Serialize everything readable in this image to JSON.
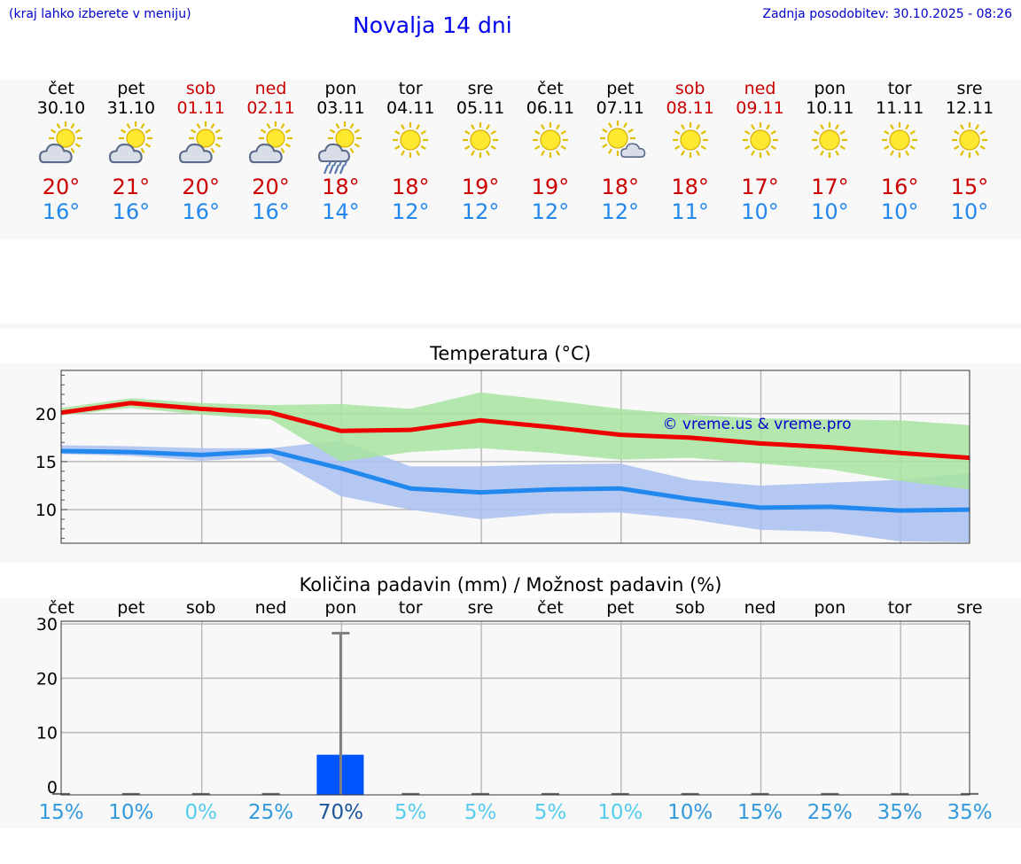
{
  "header": {
    "note": "(kraj lahko izberete v meniju)",
    "title": "Novalja 14 dni",
    "updated": "Zadnja posodobitev: 30.10.2025 - 08:26"
  },
  "days": [
    {
      "dow": "čet",
      "date": "30.10",
      "weekend": false,
      "icon": "partly-cloudy-icon",
      "tmax": "20°",
      "tmin": "16°"
    },
    {
      "dow": "pet",
      "date": "31.10",
      "weekend": false,
      "icon": "partly-cloudy-icon",
      "tmax": "21°",
      "tmin": "16°"
    },
    {
      "dow": "sob",
      "date": "01.11",
      "weekend": true,
      "icon": "partly-cloudy-icon",
      "tmax": "20°",
      "tmin": "16°"
    },
    {
      "dow": "ned",
      "date": "02.11",
      "weekend": true,
      "icon": "partly-cloudy-icon",
      "tmax": "20°",
      "tmin": "16°"
    },
    {
      "dow": "pon",
      "date": "03.11",
      "weekend": false,
      "icon": "sun-rain-icon",
      "tmax": "18°",
      "tmin": "14°"
    },
    {
      "dow": "tor",
      "date": "04.11",
      "weekend": false,
      "icon": "sun-icon",
      "tmax": "18°",
      "tmin": "12°"
    },
    {
      "dow": "sre",
      "date": "05.11",
      "weekend": false,
      "icon": "sun-icon",
      "tmax": "19°",
      "tmin": "12°"
    },
    {
      "dow": "čet",
      "date": "06.11",
      "weekend": false,
      "icon": "sun-icon",
      "tmax": "19°",
      "tmin": "12°"
    },
    {
      "dow": "pet",
      "date": "07.11",
      "weekend": false,
      "icon": "sun-small-cloud-icon",
      "tmax": "18°",
      "tmin": "12°"
    },
    {
      "dow": "sob",
      "date": "08.11",
      "weekend": true,
      "icon": "sun-icon",
      "tmax": "18°",
      "tmin": "11°"
    },
    {
      "dow": "ned",
      "date": "09.11",
      "weekend": true,
      "icon": "sun-icon",
      "tmax": "17°",
      "tmin": "10°"
    },
    {
      "dow": "pon",
      "date": "10.11",
      "weekend": false,
      "icon": "sun-icon",
      "tmax": "17°",
      "tmin": "10°"
    },
    {
      "dow": "tor",
      "date": "11.11",
      "weekend": false,
      "icon": "sun-icon",
      "tmax": "16°",
      "tmin": "10°"
    },
    {
      "dow": "sre",
      "date": "12.11",
      "weekend": false,
      "icon": "sun-icon",
      "tmax": "15°",
      "tmin": "10°"
    }
  ],
  "colors": {
    "max_line": "#ee0000",
    "min_line": "#2288ee",
    "max_band": "#a8e4a0",
    "min_band": "#a8c0f0",
    "bar": "#0055ff",
    "weekend": "#cc0000"
  },
  "chart_data": [
    {
      "type": "line",
      "title": "Temperatura (°C)",
      "xlabel": "",
      "ylabel": "",
      "x": [
        0,
        1,
        2,
        3,
        4,
        5,
        6,
        7,
        8,
        9,
        10,
        11,
        12,
        13
      ],
      "ylim": [
        6.5,
        24.5
      ],
      "yticks": [
        10,
        15,
        20
      ],
      "grid": true,
      "watermark": "© vreme.us & vreme.pro",
      "series": [
        {
          "name": "max",
          "values": [
            20.1,
            21.1,
            20.5,
            20.1,
            18.2,
            18.3,
            19.3,
            18.6,
            17.8,
            17.5,
            16.9,
            16.5,
            15.9,
            15.4
          ],
          "band_low": [
            19.8,
            20.6,
            19.9,
            19.4,
            15.0,
            16.0,
            16.4,
            15.9,
            15.2,
            15.4,
            14.8,
            14.2,
            13.0,
            12.1
          ],
          "band_high": [
            20.6,
            21.6,
            21.1,
            20.9,
            21.0,
            20.5,
            22.2,
            21.4,
            20.5,
            19.9,
            19.5,
            19.4,
            19.3,
            18.8
          ]
        },
        {
          "name": "min",
          "values": [
            16.1,
            16.0,
            15.7,
            16.1,
            14.3,
            12.2,
            11.8,
            12.1,
            12.2,
            11.1,
            10.2,
            10.3,
            9.9,
            10.0
          ],
          "band_low": [
            15.8,
            15.6,
            15.1,
            15.5,
            11.4,
            10.0,
            9.0,
            9.6,
            9.7,
            9.0,
            7.9,
            7.7,
            6.7,
            6.6
          ],
          "band_high": [
            16.7,
            16.6,
            16.4,
            16.4,
            17.2,
            14.5,
            14.5,
            14.7,
            14.8,
            13.1,
            12.5,
            12.8,
            13.1,
            13.8
          ]
        }
      ]
    },
    {
      "type": "bar",
      "title": "Količina padavin (mm) / Možnost padavin (%)",
      "categories": [
        "čet",
        "pet",
        "sob",
        "ned",
        "pon",
        "tor",
        "sre",
        "čet",
        "pet",
        "sob",
        "ned",
        "pon",
        "tor",
        "sre"
      ],
      "values": [
        0,
        0,
        0,
        0,
        5.9,
        0,
        0,
        0,
        0,
        0,
        0,
        0,
        0,
        0
      ],
      "error_high": [
        0,
        0,
        0,
        0,
        28.3,
        0,
        0,
        0,
        0,
        0,
        0,
        0,
        0,
        0
      ],
      "ylim": [
        -1.5,
        30.5
      ],
      "yticks": [
        0,
        10,
        20,
        30
      ],
      "chance": [
        "15%",
        "10%",
        "0%",
        "25%",
        "70%",
        "5%",
        "5%",
        "5%",
        "10%",
        "10%",
        "15%",
        "25%",
        "35%",
        "35%"
      ],
      "chance_colors": [
        "#3399dd",
        "#3399dd",
        "#55ccee",
        "#3399dd",
        "#1a5599",
        "#55ccee",
        "#55ccee",
        "#55ccee",
        "#55ccee",
        "#3399dd",
        "#3399dd",
        "#3399dd",
        "#3399dd",
        "#3399dd"
      ]
    }
  ]
}
